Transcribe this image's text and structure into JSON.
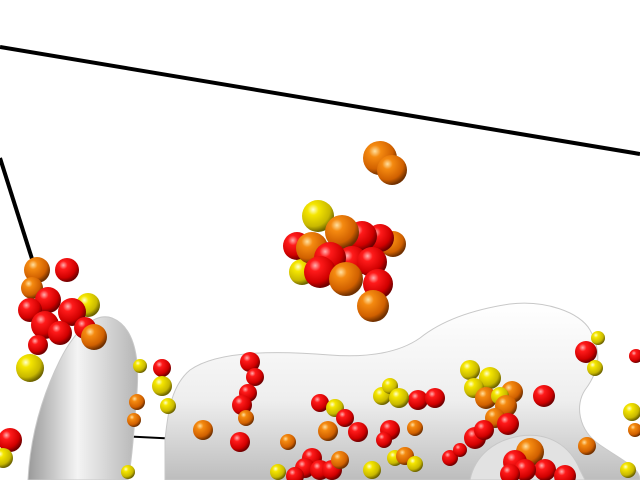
{
  "scene": {
    "background": "#ffffff",
    "frame_color": "#000000",
    "surface_color": "#eeeeee",
    "sphere_colors": {
      "red": "#ff0000",
      "orange": "#f07800",
      "yellow": "#f2e000"
    }
  }
}
